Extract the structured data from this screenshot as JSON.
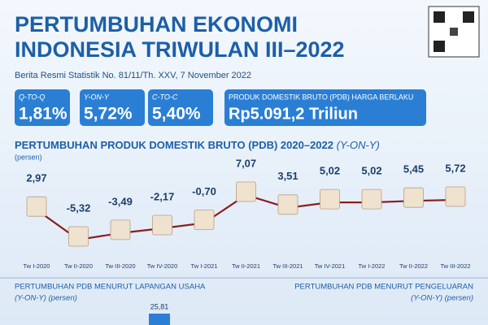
{
  "header": {
    "title_line1": "PERTUMBUHAN EKONOMI",
    "title_line2": "INDONESIA TRIWULAN III–2022",
    "subtitle": "Berita Resmi Statistik No. 81/11/Th. XXV, 7 November 2022"
  },
  "summary": [
    {
      "label": "Q-TO-Q",
      "value": "1,81%"
    },
    {
      "label": "Y-ON-Y",
      "value": "5,72%"
    },
    {
      "label": "C-TO-C",
      "value": "5,40%"
    },
    {
      "label": "PRODUK DOMESTIK BRUTO (PDB) HARGA BERLAKU",
      "value": "Rp5.091,2 Triliun"
    }
  ],
  "chart_data": {
    "type": "line",
    "title": "PERTUMBUHAN PRODUK DOMESTIK BRUTO (PDB) 2020–2022",
    "title_suffix": "(Y-ON-Y)",
    "y_label": "(persen)",
    "categories": [
      "Tw I-2020",
      "Tw II-2020",
      "Tw III-2020",
      "Tw IV-2020",
      "Tw I-2021",
      "Tw II-2021",
      "Tw III-2021",
      "Tw IV-2021",
      "Tw I-2022",
      "Tw II-2022",
      "Tw III-2022"
    ],
    "values": [
      2.97,
      -5.32,
      -3.49,
      -2.17,
      -0.7,
      7.07,
      3.51,
      5.02,
      5.02,
      5.45,
      5.72
    ],
    "value_labels": [
      "2,97",
      "-5,32",
      "-3,49",
      "-2,17",
      "-0,70",
      "7,07",
      "3,51",
      "5,02",
      "5,02",
      "5,45",
      "5,72"
    ],
    "color": "#8b1e1e"
  },
  "sections": {
    "left_title": "PERTUMBUHAN PDB MENURUT LAPANGAN USAHA",
    "left_subtitle": "(Y-ON-Y) (persen)",
    "left_first_value": "25,81",
    "right_title": "PERTUMBUHAN PDB MENURUT PENGELUARAN",
    "right_subtitle": "(Y-ON-Y) (persen)"
  }
}
